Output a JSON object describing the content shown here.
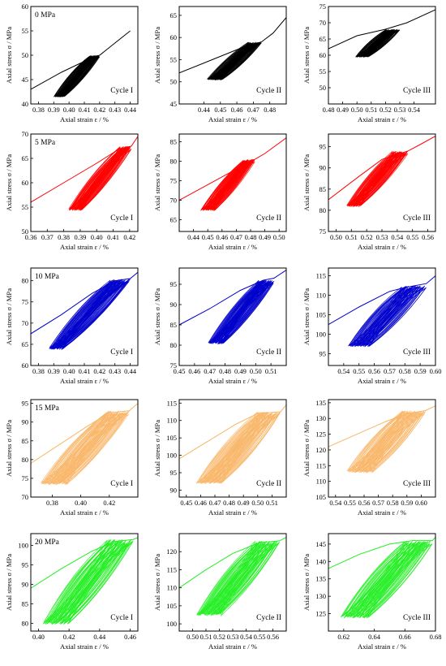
{
  "chart_data": {
    "type": "line",
    "title": "",
    "grid": false,
    "xlabel": "Axial strain ε / %",
    "ylabel": "Axial stress σ / MPa",
    "confining_pressure_labels": [
      "0 MPa",
      "5 MPa",
      "10 MPa",
      "15 MPa",
      "20 MPa"
    ],
    "rows": [
      {
        "condition": "0 MPa",
        "color": "#000000",
        "panels": [
          {
            "cycle": "Cycle I",
            "xlim": [
              0.375,
              0.445
            ],
            "ylim": [
              40,
              60
            ],
            "xticks": [
              "0.38",
              "0.39",
              "0.40",
              "0.41",
              "0.42",
              "0.43",
              "0.44"
            ],
            "yticks": [
              "40",
              "45",
              "50",
              "55",
              "60"
            ],
            "lower_stress": 41.5,
            "upper_stress": 50,
            "loop_strain_lower": [
              0.39,
              0.397
            ],
            "loop_strain_upper": [
              0.413,
              0.42
            ],
            "envelope": [
              [
                0.375,
                43
              ],
              [
                0.395,
                46.5
              ],
              [
                0.415,
                49.5
              ],
              [
                0.42,
                50
              ],
              [
                0.43,
                52.5
              ],
              [
                0.44,
                55
              ]
            ]
          },
          {
            "cycle": "Cycle II",
            "xlim": [
              0.425,
              0.49
            ],
            "ylim": [
              45,
              67
            ],
            "xticks": [
              "0.44",
              "0.45",
              "0.46",
              "0.47",
              "0.48"
            ],
            "yticks": [
              "45",
              "50",
              "55",
              "60",
              "65"
            ],
            "lower_stress": 50.5,
            "upper_stress": 59,
            "loop_strain_lower": [
              0.442,
              0.451
            ],
            "loop_strain_upper": [
              0.467,
              0.475
            ],
            "envelope": [
              [
                0.425,
                52
              ],
              [
                0.445,
                55
              ],
              [
                0.465,
                58
              ],
              [
                0.475,
                59
              ],
              [
                0.482,
                61
              ],
              [
                0.49,
                64.5
              ]
            ]
          },
          {
            "cycle": "Cycle III",
            "xlim": [
              0.48,
              0.555
            ],
            "ylim": [
              45,
              75
            ],
            "xticks": [
              "0.48",
              "0.49",
              "0.50",
              "0.51",
              "0.52",
              "0.53",
              "0.54"
            ],
            "yticks": [
              "50",
              "55",
              "60",
              "65",
              "70",
              "75"
            ],
            "lower_stress": 59.5,
            "upper_stress": 68,
            "loop_strain_lower": [
              0.499,
              0.508
            ],
            "loop_strain_upper": [
              0.52,
              0.53
            ],
            "envelope": [
              [
                0.48,
                62
              ],
              [
                0.5,
                66
              ],
              [
                0.52,
                68
              ],
              [
                0.535,
                70
              ],
              [
                0.555,
                74
              ]
            ]
          }
        ]
      },
      {
        "condition": "5 MPa",
        "color": "#ff0000",
        "panels": [
          {
            "cycle": "Cycle I",
            "xlim": [
              0.36,
              0.425
            ],
            "ylim": [
              50,
              70
            ],
            "xticks": [
              "0.36",
              "0.37",
              "0.38",
              "0.39",
              "0.40",
              "0.41",
              "0.42"
            ],
            "yticks": [
              "50",
              "55",
              "60",
              "65",
              "70"
            ],
            "lower_stress": 54.5,
            "upper_stress": 67.5,
            "loop_strain_lower": [
              0.383,
              0.391
            ],
            "loop_strain_upper": [
              0.414,
              0.421
            ],
            "envelope": [
              [
                0.36,
                56
              ],
              [
                0.38,
                60
              ],
              [
                0.4,
                64
              ],
              [
                0.414,
                67
              ],
              [
                0.421,
                67.5
              ],
              [
                0.425,
                69.5
              ]
            ]
          },
          {
            "cycle": "Cycle II",
            "xlim": [
              0.43,
              0.505
            ],
            "ylim": [
              62,
              87
            ],
            "xticks": [
              "0.44",
              "0.45",
              "0.46",
              "0.47",
              "0.48",
              "0.49",
              "0.50"
            ],
            "yticks": [
              "65",
              "70",
              "75",
              "80",
              "85"
            ],
            "lower_stress": 67.5,
            "upper_stress": 80.5,
            "loop_strain_lower": [
              0.445,
              0.455
            ],
            "loop_strain_upper": [
              0.475,
              0.483
            ],
            "envelope": [
              [
                0.43,
                70
              ],
              [
                0.45,
                74
              ],
              [
                0.47,
                78
              ],
              [
                0.483,
                80.5
              ],
              [
                0.49,
                82
              ],
              [
                0.505,
                86
              ]
            ]
          },
          {
            "cycle": "Cycle III",
            "xlim": [
              0.495,
              0.565
            ],
            "ylim": [
              75,
              98
            ],
            "xticks": [
              "0.50",
              "0.51",
              "0.52",
              "0.53",
              "0.54",
              "0.55",
              "0.56"
            ],
            "yticks": [
              "75",
              "80",
              "85",
              "90",
              "95"
            ],
            "lower_stress": 81,
            "upper_stress": 94,
            "loop_strain_lower": [
              0.507,
              0.516
            ],
            "loop_strain_upper": [
              0.537,
              0.547
            ],
            "envelope": [
              [
                0.495,
                82.5
              ],
              [
                0.515,
                88
              ],
              [
                0.53,
                92
              ],
              [
                0.547,
                94
              ],
              [
                0.555,
                95.5
              ],
              [
                0.565,
                97.5
              ]
            ]
          }
        ]
      },
      {
        "condition": "10 MPa",
        "color": "#0000cc",
        "panels": [
          {
            "cycle": "Cycle I",
            "xlim": [
              0.375,
              0.445
            ],
            "ylim": [
              60,
              83
            ],
            "xticks": [
              "0.38",
              "0.39",
              "0.40",
              "0.41",
              "0.42",
              "0.43",
              "0.44"
            ],
            "yticks": [
              "60",
              "65",
              "70",
              "75",
              "80"
            ],
            "lower_stress": 64,
            "upper_stress": 80.5,
            "loop_strain_lower": [
              0.387,
              0.396
            ],
            "loop_strain_upper": [
              0.427,
              0.44
            ],
            "envelope": [
              [
                0.375,
                67.5
              ],
              [
                0.395,
                72
              ],
              [
                0.415,
                77
              ],
              [
                0.43,
                80
              ],
              [
                0.44,
                80.5
              ],
              [
                0.445,
                82
              ]
            ]
          },
          {
            "cycle": "Cycle II",
            "xlim": [
              0.45,
              0.52
            ],
            "ylim": [
              75,
              99
            ],
            "xticks": [
              "0.45",
              "0.46",
              "0.47",
              "0.48",
              "0.49",
              "0.50",
              "0.51"
            ],
            "yticks": [
              "75",
              "80",
              "85",
              "90",
              "95"
            ],
            "lower_stress": 80.5,
            "upper_stress": 96,
            "loop_strain_lower": [
              0.469,
              0.479
            ],
            "loop_strain_upper": [
              0.502,
              0.512
            ],
            "envelope": [
              [
                0.45,
                85
              ],
              [
                0.47,
                89
              ],
              [
                0.49,
                93.5
              ],
              [
                0.505,
                96
              ],
              [
                0.512,
                96.5
              ],
              [
                0.52,
                98.5
              ]
            ]
          },
          {
            "cycle": "Cycle III",
            "xlim": [
              0.53,
              0.6
            ],
            "ylim": [
              92,
              117
            ],
            "xticks": [
              "0.54",
              "0.55",
              "0.56",
              "0.57",
              "0.58",
              "0.59",
              "0.60"
            ],
            "yticks": [
              "95",
              "100",
              "105",
              "110",
              "115"
            ],
            "lower_stress": 97,
            "upper_stress": 112.5,
            "loop_strain_lower": [
              0.543,
              0.557
            ],
            "loop_strain_upper": [
              0.578,
              0.594
            ],
            "envelope": [
              [
                0.53,
                102.5
              ],
              [
                0.55,
                107
              ],
              [
                0.57,
                111
              ],
              [
                0.58,
                112
              ],
              [
                0.594,
                113
              ],
              [
                0.6,
                115
              ]
            ]
          }
        ]
      },
      {
        "condition": "15 MPa",
        "color": "#f8b668",
        "panels": [
          {
            "cycle": "Cycle I",
            "xlim": [
              0.365,
              0.44
            ],
            "ylim": [
              70,
              96
            ],
            "xticks": [
              "0.38",
              "0.40",
              "0.42"
            ],
            "yticks": [
              "70",
              "75",
              "80",
              "85",
              "90",
              "95"
            ],
            "lower_stress": 73.5,
            "upper_stress": 93,
            "loop_strain_lower": [
              0.372,
              0.39
            ],
            "loop_strain_upper": [
              0.418,
              0.434
            ],
            "envelope": [
              [
                0.365,
                79
              ],
              [
                0.385,
                84
              ],
              [
                0.405,
                89
              ],
              [
                0.42,
                92.5
              ],
              [
                0.434,
                93
              ],
              [
                0.44,
                95
              ]
            ]
          },
          {
            "cycle": "Cycle II",
            "xlim": [
              0.445,
              0.52
            ],
            "ylim": [
              88,
              116
            ],
            "xticks": [
              "0.45",
              "0.46",
              "0.47",
              "0.48",
              "0.49",
              "0.50",
              "0.51"
            ],
            "yticks": [
              "90",
              "95",
              "100",
              "105",
              "110",
              "115"
            ],
            "lower_stress": 92,
            "upper_stress": 112.5,
            "loop_strain_lower": [
              0.457,
              0.475
            ],
            "loop_strain_upper": [
              0.5,
              0.516
            ],
            "envelope": [
              [
                0.445,
                99
              ],
              [
                0.465,
                104
              ],
              [
                0.485,
                109
              ],
              [
                0.5,
                112
              ],
              [
                0.516,
                112.5
              ],
              [
                0.52,
                114.5
              ]
            ]
          },
          {
            "cycle": "Cycle III",
            "xlim": [
              0.535,
              0.61
            ],
            "ylim": [
              105,
              136
            ],
            "xticks": [
              "0.54",
              "0.55",
              "0.56",
              "0.57",
              "0.58",
              "0.59",
              "0.60"
            ],
            "yticks": [
              "105",
              "110",
              "115",
              "120",
              "125",
              "130",
              "135"
            ],
            "lower_stress": 113,
            "upper_stress": 132.5,
            "loop_strain_lower": [
              0.548,
              0.566
            ],
            "loop_strain_upper": [
              0.586,
              0.603
            ],
            "envelope": [
              [
                0.535,
                121
              ],
              [
                0.555,
                125
              ],
              [
                0.575,
                129
              ],
              [
                0.59,
                131.5
              ],
              [
                0.603,
                132.5
              ],
              [
                0.61,
                134
              ]
            ]
          }
        ]
      },
      {
        "condition": "20 MPa",
        "color": "#22ee22",
        "panels": [
          {
            "cycle": "Cycle I",
            "xlim": [
              0.395,
              0.465
            ],
            "ylim": [
              78,
              103
            ],
            "xticks": [
              "0.40",
              "0.42",
              "0.44",
              "0.46"
            ],
            "yticks": [
              "80",
              "85",
              "90",
              "95",
              "100"
            ],
            "lower_stress": 80,
            "upper_stress": 101.5,
            "loop_strain_lower": [
              0.403,
              0.42
            ],
            "loop_strain_upper": [
              0.445,
              0.462
            ],
            "envelope": [
              [
                0.395,
                89
              ],
              [
                0.415,
                94
              ],
              [
                0.435,
                98.5
              ],
              [
                0.45,
                101
              ],
              [
                0.462,
                101.5
              ],
              [
                0.465,
                102
              ]
            ]
          },
          {
            "cycle": "Cycle II",
            "xlim": [
              0.49,
              0.57
            ],
            "ylim": [
              98,
              125
            ],
            "xticks": [
              "0.50",
              "0.51",
              "0.52",
              "0.53",
              "0.54",
              "0.55",
              "0.56"
            ],
            "yticks": [
              "100",
              "105",
              "110",
              "115",
              "120"
            ],
            "lower_stress": 102.5,
            "upper_stress": 123,
            "loop_strain_lower": [
              0.503,
              0.521
            ],
            "loop_strain_upper": [
              0.547,
              0.565
            ],
            "envelope": [
              [
                0.49,
                110
              ],
              [
                0.51,
                115
              ],
              [
                0.53,
                119.5
              ],
              [
                0.55,
                122.5
              ],
              [
                0.565,
                123
              ],
              [
                0.57,
                124
              ]
            ]
          },
          {
            "cycle": "Cycle III",
            "xlim": [
              0.61,
              0.68
            ],
            "ylim": [
              120,
              148
            ],
            "xticks": [
              "0.62",
              "0.64",
              "0.66",
              "0.68"
            ],
            "yticks": [
              "125",
              "130",
              "135",
              "140",
              "145"
            ],
            "lower_stress": 124,
            "upper_stress": 146,
            "loop_strain_lower": [
              0.618,
              0.636
            ],
            "loop_strain_upper": [
              0.66,
              0.678
            ],
            "envelope": [
              [
                0.61,
                138
              ],
              [
                0.63,
                142
              ],
              [
                0.65,
                145
              ],
              [
                0.665,
                146
              ],
              [
                0.678,
                146
              ],
              [
                0.68,
                147
              ]
            ]
          }
        ]
      }
    ]
  }
}
